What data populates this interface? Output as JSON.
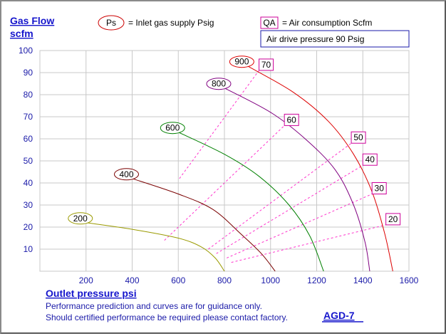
{
  "colors": {
    "grid": "#c8c8c8",
    "axis_text": "#1a1aa8",
    "title": "#1515cc",
    "qa_box": "#cc0099",
    "qa_line": "#ff33cc",
    "legend_box": "#1a1aa8"
  },
  "labels": {
    "y_title_line1": "Gas Flow",
    "y_title_line2": "scfm",
    "x_title": "Outlet pressure   psi",
    "footnote_line1": "Performance prediction and curves are for guidance only.",
    "footnote_line2": "Should certified performance be required please contact factory.",
    "model": "AGD-7",
    "legend_ps_symbol": "Ps",
    "legend_ps_text": "= Inlet gas supply  Psig",
    "legend_qa_symbol": "QA",
    "legend_qa_text": "= Air consumption  Scfm",
    "drive_pressure": "Air drive pressure  90 Psig"
  },
  "chart_data": {
    "type": "line",
    "x_ticks": [
      "200",
      "400",
      "600",
      "800",
      "1000",
      "1200",
      "1400",
      "1600"
    ],
    "y_ticks": [
      "10",
      "20",
      "30",
      "40",
      "50",
      "60",
      "70",
      "80",
      "90",
      "100"
    ],
    "xlim": [
      0,
      1600
    ],
    "ylim": [
      0,
      100
    ],
    "grid": true,
    "series": [
      {
        "name": "200",
        "color": "#9a9a00",
        "points": [
          [
            200,
            22
          ],
          [
            400,
            19
          ],
          [
            600,
            15
          ],
          [
            700,
            11
          ],
          [
            760,
            6
          ],
          [
            800,
            0
          ]
        ]
      },
      {
        "name": "400",
        "color": "#7a0000",
        "points": [
          [
            400,
            42
          ],
          [
            600,
            35
          ],
          [
            750,
            28
          ],
          [
            870,
            17
          ],
          [
            960,
            8
          ],
          [
            1020,
            0
          ]
        ]
      },
      {
        "name": "600",
        "color": "#008000",
        "points": [
          [
            600,
            63
          ],
          [
            800,
            53
          ],
          [
            950,
            43
          ],
          [
            1080,
            30
          ],
          [
            1170,
            16
          ],
          [
            1230,
            0
          ]
        ]
      },
      {
        "name": "800",
        "color": "#800080",
        "points": [
          [
            800,
            83
          ],
          [
            1000,
            72
          ],
          [
            1150,
            60
          ],
          [
            1280,
            46
          ],
          [
            1360,
            30
          ],
          [
            1410,
            13
          ],
          [
            1430,
            0
          ]
        ]
      },
      {
        "name": "900",
        "color": "#dd0000",
        "points": [
          [
            900,
            93
          ],
          [
            1100,
            81
          ],
          [
            1250,
            68
          ],
          [
            1360,
            53
          ],
          [
            1440,
            36
          ],
          [
            1495,
            17
          ],
          [
            1530,
            0
          ]
        ]
      }
    ],
    "air_consumption": [
      {
        "label": "70",
        "points": [
          [
            605,
            42
          ],
          [
            950,
            91
          ]
        ]
      },
      {
        "label": "60",
        "points": [
          [
            540,
            14
          ],
          [
            1060,
            66
          ]
        ]
      },
      {
        "label": "50",
        "points": [
          [
            730,
            10
          ],
          [
            1350,
            58
          ]
        ]
      },
      {
        "label": "40",
        "points": [
          [
            765,
            8
          ],
          [
            1400,
            48
          ]
        ]
      },
      {
        "label": "30",
        "points": [
          [
            810,
            6
          ],
          [
            1440,
            35
          ]
        ]
      },
      {
        "label": "20",
        "points": [
          [
            830,
            4
          ],
          [
            1500,
            21
          ]
        ]
      }
    ]
  }
}
